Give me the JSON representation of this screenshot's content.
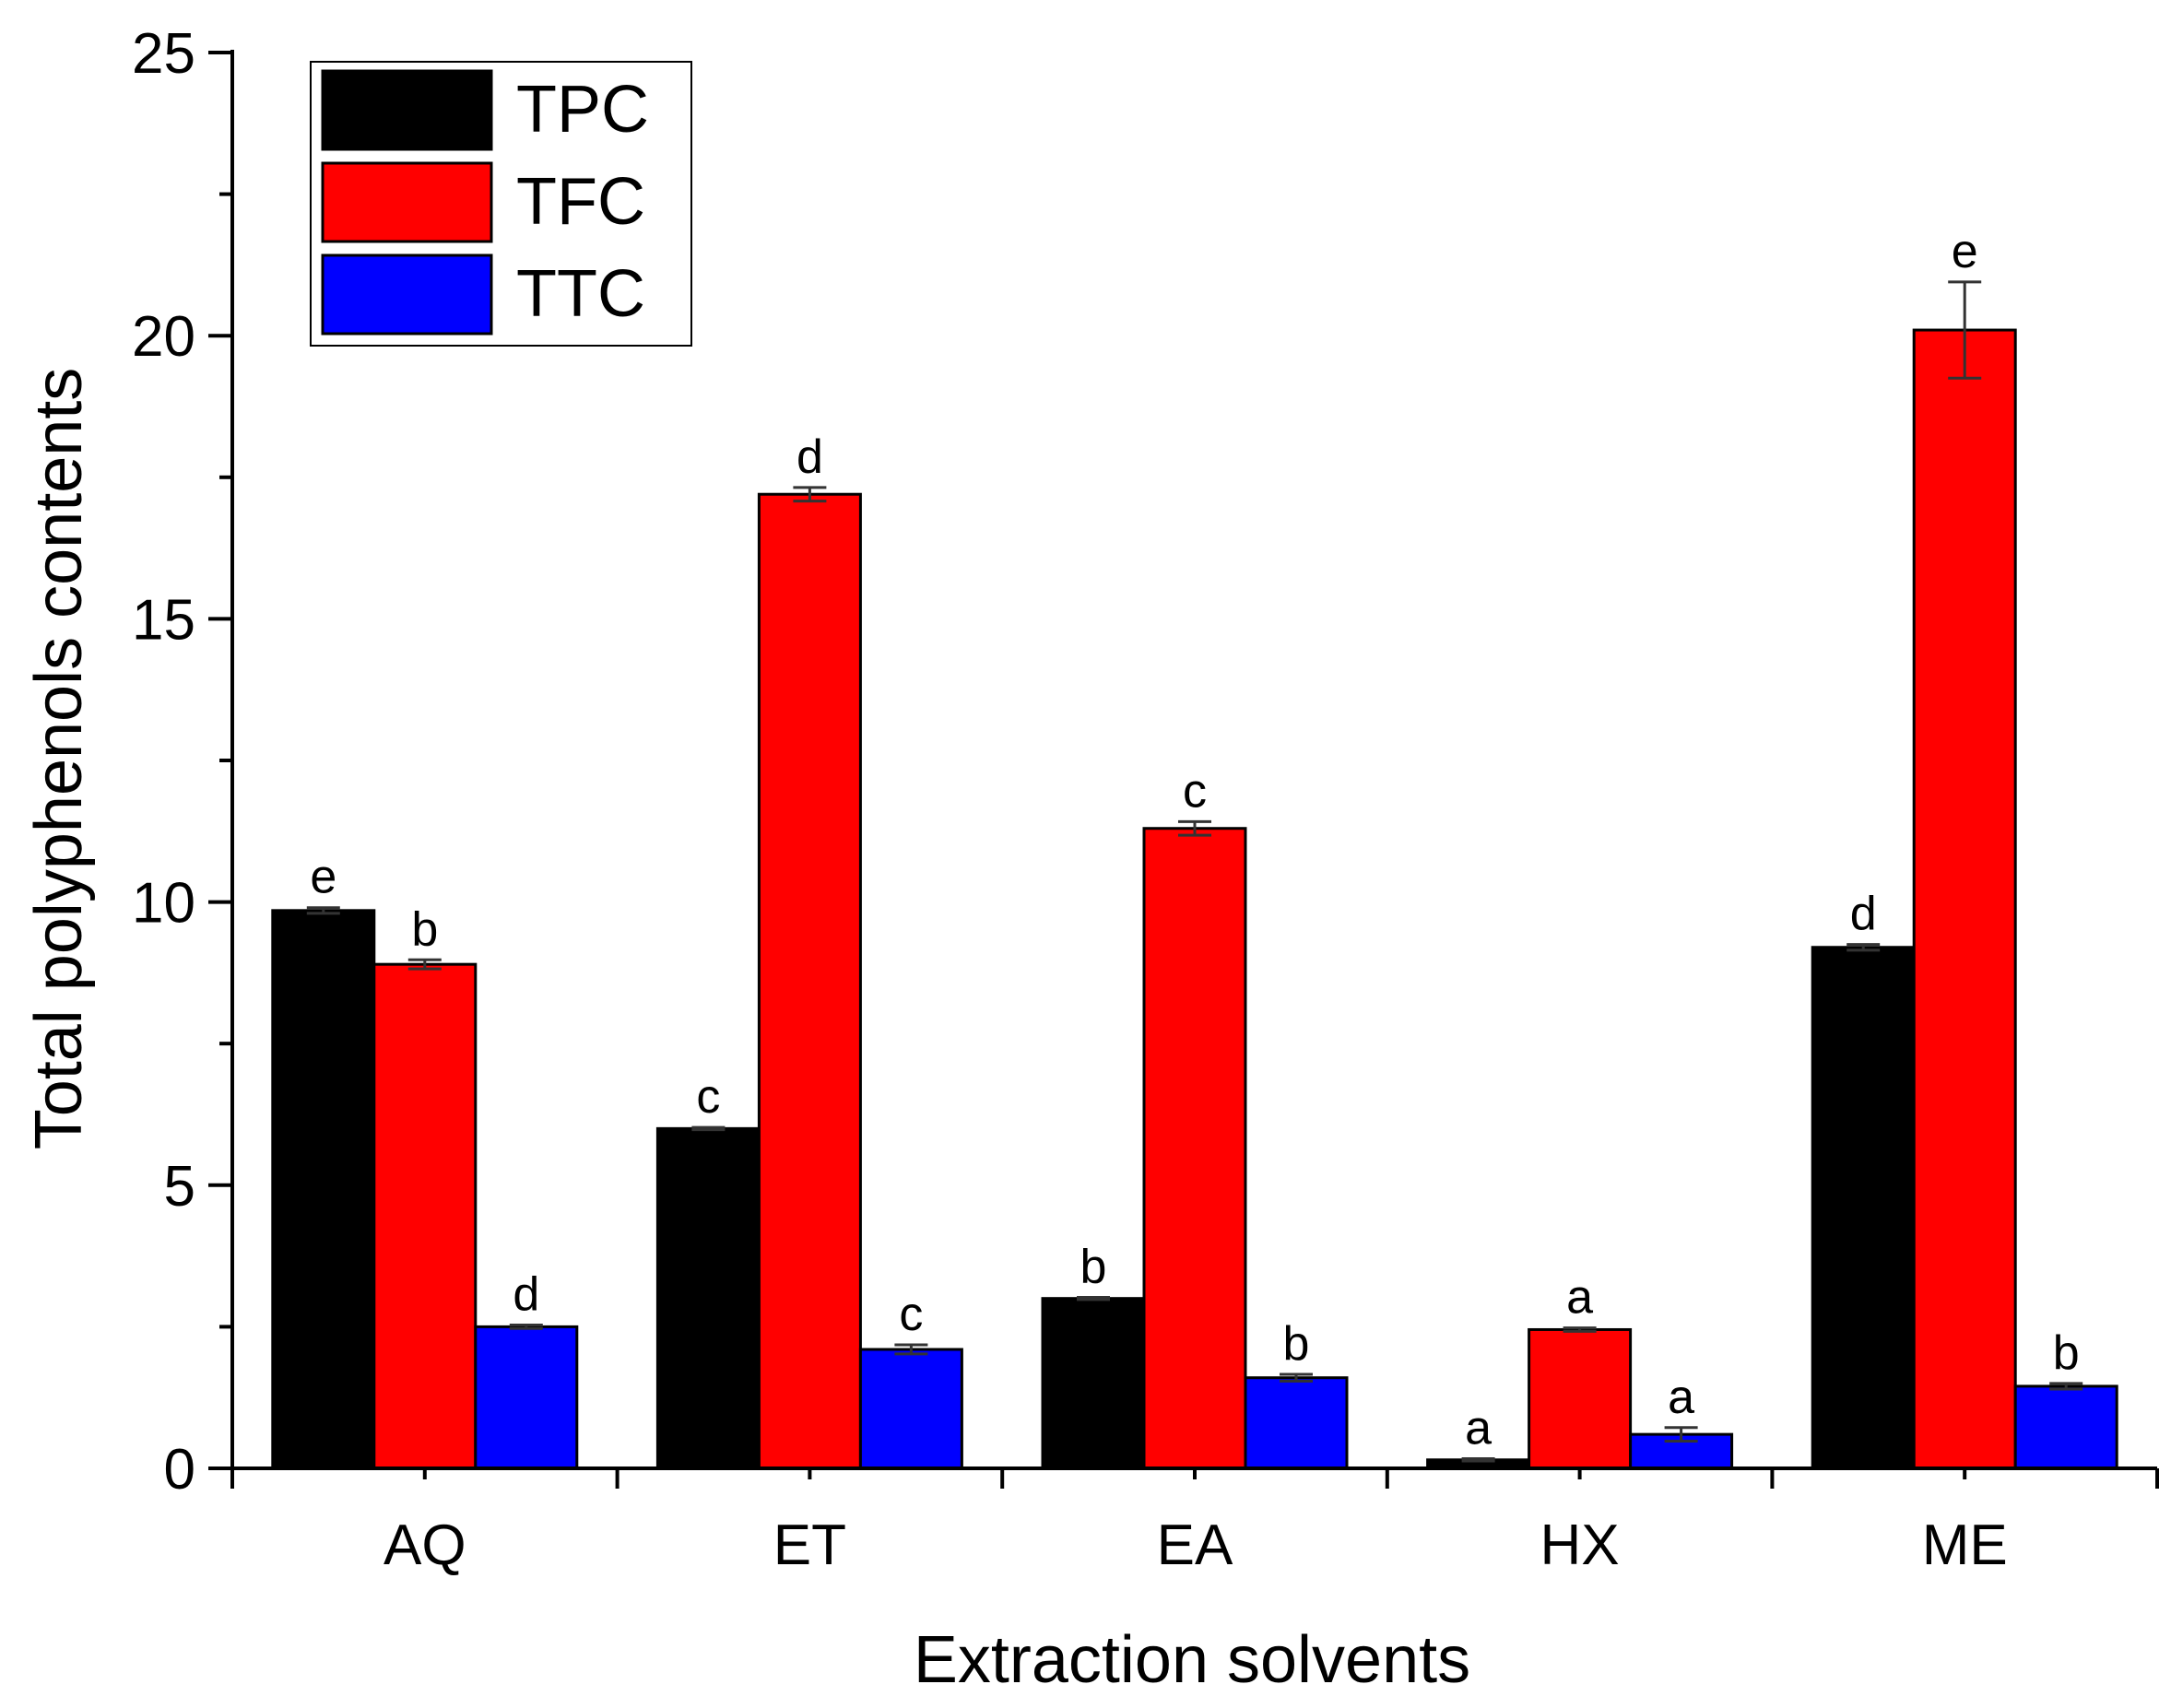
{
  "chart_data": {
    "type": "bar",
    "title": "",
    "xlabel": "Extraction solvents",
    "ylabel": "Total polyphenols contents",
    "ylim": [
      0,
      25
    ],
    "yticks": [
      "0",
      "5",
      "10",
      "15",
      "20",
      "25"
    ],
    "ytick_values": [
      0,
      5,
      10,
      15,
      20,
      25
    ],
    "categories": [
      "AQ",
      "ET",
      "EA",
      "HX",
      "ME"
    ],
    "legend_position": "top-left",
    "grid": false,
    "series": [
      {
        "name": "TPC",
        "color": "#000000",
        "values": [
          9.85,
          6.0,
          3.0,
          0.15,
          9.2
        ],
        "errors": [
          0.05,
          0.02,
          0.02,
          0.02,
          0.05
        ],
        "letters": [
          "e",
          "c",
          "b",
          "a",
          "d"
        ]
      },
      {
        "name": "TFC",
        "color": "#ff0000",
        "values": [
          8.9,
          17.2,
          11.3,
          2.45,
          20.1
        ],
        "errors": [
          0.08,
          0.12,
          0.12,
          0.03,
          0.85
        ],
        "letters": [
          "b",
          "d",
          "c",
          "a",
          "e"
        ]
      },
      {
        "name": "TTC",
        "color": "#0000ff",
        "values": [
          2.5,
          2.1,
          1.6,
          0.6,
          1.45
        ],
        "errors": [
          0.03,
          0.08,
          0.06,
          0.12,
          0.05
        ],
        "letters": [
          "d",
          "c",
          "b",
          "a",
          "b"
        ]
      }
    ]
  }
}
